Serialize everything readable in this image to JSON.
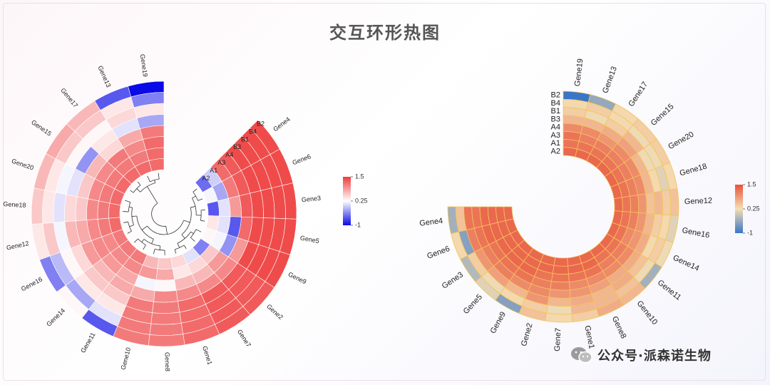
{
  "page": {
    "title": "交互环形热图"
  },
  "watermark": {
    "text": "公众号·派森诺生物"
  },
  "colors": {
    "left_scale": [
      "#0a0ae6",
      "#ffffff",
      "#ee3b3b"
    ],
    "right_scale": [
      "#3a76c8",
      "#f5deb3",
      "#e8523a"
    ],
    "right_cell_border": "#f3c55a"
  },
  "chart_data": [
    {
      "type": "heatmap",
      "layout": "circular",
      "title": "",
      "tracks": [
        "B2",
        "B4",
        "B1",
        "B3",
        "A4",
        "A3",
        "A1",
        "A2"
      ],
      "genes": [
        "Gene4",
        "Gene6",
        "Gene3",
        "Gene5",
        "Gene9",
        "Gene2",
        "Gene7",
        "Gene1",
        "Gene8",
        "Gene10",
        "Gene11",
        "Gene14",
        "Gene16",
        "Gene12",
        "Gene18",
        "Gene20",
        "Gene15",
        "Gene17",
        "Gene13",
        "Gene19"
      ],
      "values": [
        [
          1.4,
          1.4,
          1.4,
          1.4,
          1.3,
          1.2,
          0.0,
          -0.5
        ],
        [
          1.4,
          1.4,
          1.4,
          1.4,
          1.3,
          1.1,
          -0.2,
          0.2
        ],
        [
          1.4,
          1.4,
          1.4,
          1.4,
          1.3,
          0.9,
          0.1,
          -0.6
        ],
        [
          1.4,
          1.4,
          1.4,
          1.4,
          1.2,
          -0.6,
          0.1,
          0.4
        ],
        [
          1.4,
          1.4,
          1.4,
          1.4,
          0.9,
          -0.3,
          0.2,
          0.3
        ],
        [
          1.3,
          1.3,
          1.3,
          1.3,
          1.0,
          0.9,
          0.6,
          -0.4
        ],
        [
          1.3,
          1.3,
          1.3,
          1.3,
          1.0,
          0.7,
          0.5,
          0.1
        ],
        [
          1.2,
          1.2,
          1.2,
          1.2,
          1.0,
          0.7,
          0.4,
          0.5
        ],
        [
          1.1,
          1.1,
          1.1,
          1.1,
          1.0,
          0.3,
          0.8,
          0.6
        ],
        [
          1.1,
          1.1,
          1.1,
          1.1,
          0.8,
          0.2,
          0.9,
          0.7
        ],
        [
          -0.6,
          0.1,
          0.4,
          0.6,
          0.8,
          0.8,
          1.0,
          1.1
        ],
        [
          0.3,
          -0.2,
          0.4,
          0.6,
          0.7,
          0.9,
          1.0,
          1.1
        ],
        [
          -0.4,
          -0.1,
          0.3,
          0.5,
          0.9,
          1.0,
          1.0,
          1.1
        ],
        [
          0.4,
          0.6,
          0.2,
          0.7,
          0.8,
          1.0,
          1.1,
          1.2
        ],
        [
          0.6,
          0.4,
          0.1,
          0.5,
          0.6,
          1.0,
          1.1,
          1.2
        ],
        [
          0.7,
          0.4,
          0.2,
          0.1,
          0.6,
          1.0,
          1.1,
          1.2
        ],
        [
          0.8,
          0.6,
          0.3,
          -0.3,
          0.7,
          1.0,
          1.1,
          1.2
        ],
        [
          0.7,
          0.6,
          0.3,
          0.4,
          0.5,
          1.1,
          1.1,
          1.2
        ],
        [
          -0.6,
          0.4,
          0.5,
          0.1,
          0.8,
          1.0,
          1.1,
          1.2
        ],
        [
          -1.0,
          -0.4,
          0.4,
          -0.2,
          1.1,
          1.2,
          1.2,
          1.2
        ]
      ],
      "legend": {
        "ticks": [
          "1.5",
          "0.25",
          "-1"
        ],
        "range": [
          -1,
          1.5
        ]
      }
    },
    {
      "type": "heatmap",
      "layout": "circular",
      "title": "",
      "tracks": [
        "B2",
        "B4",
        "B1",
        "B3",
        "A4",
        "A3",
        "A1",
        "A2"
      ],
      "genes": [
        "Gene19",
        "Gene13",
        "Gene17",
        "Gene15",
        "Gene20",
        "Gene18",
        "Gene12",
        "Gene16",
        "Gene14",
        "Gene11",
        "Gene10",
        "Gene8",
        "Gene1",
        "Gene7",
        "Gene2",
        "Gene9",
        "Gene5",
        "Gene3",
        "Gene6",
        "Gene4"
      ],
      "values": [
        [
          -1.0,
          0.3,
          0.4,
          0.6,
          1.0,
          1.2,
          1.2,
          1.3
        ],
        [
          -0.4,
          0.4,
          0.2,
          0.6,
          1.0,
          1.1,
          1.2,
          1.3
        ],
        [
          0.3,
          0.3,
          0.4,
          0.7,
          0.9,
          1.1,
          1.2,
          1.3
        ],
        [
          0.4,
          0.2,
          0.6,
          0.8,
          1.0,
          1.1,
          1.2,
          1.3
        ],
        [
          0.4,
          0.2,
          0.2,
          0.6,
          1.0,
          1.1,
          1.2,
          1.3
        ],
        [
          0.3,
          0.1,
          0.3,
          0.6,
          1.0,
          1.1,
          1.2,
          1.3
        ],
        [
          0.5,
          0.4,
          0.6,
          0.5,
          0.9,
          1.1,
          1.2,
          1.3
        ],
        [
          0.1,
          0.3,
          0.4,
          0.6,
          0.9,
          1.1,
          1.2,
          1.3
        ],
        [
          0.2,
          0.4,
          0.3,
          0.7,
          0.9,
          1.0,
          1.2,
          1.3
        ],
        [
          -0.3,
          0.2,
          0.5,
          0.7,
          1.0,
          1.1,
          1.2,
          1.3
        ],
        [
          0.6,
          0.5,
          0.7,
          0.7,
          1.0,
          1.1,
          1.2,
          1.3
        ],
        [
          0.7,
          0.6,
          0.6,
          0.8,
          1.0,
          1.2,
          1.3,
          1.3
        ],
        [
          0.4,
          0.6,
          0.7,
          0.9,
          1.0,
          1.2,
          1.3,
          1.3
        ],
        [
          0.3,
          0.2,
          0.6,
          0.9,
          1.1,
          1.2,
          1.3,
          1.3
        ],
        [
          0.5,
          0.4,
          0.9,
          1.0,
          1.1,
          1.2,
          1.3,
          1.3
        ],
        [
          -0.5,
          0.3,
          0.6,
          1.0,
          1.2,
          1.3,
          1.3,
          1.3
        ],
        [
          0.1,
          0.2,
          0.8,
          1.1,
          1.2,
          1.3,
          1.3,
          1.3
        ],
        [
          -0.2,
          0.4,
          0.9,
          1.1,
          1.2,
          1.3,
          1.3,
          1.3
        ],
        [
          0.3,
          -0.5,
          1.1,
          1.2,
          1.3,
          1.3,
          1.3,
          1.3
        ],
        [
          -0.3,
          0.5,
          1.2,
          1.2,
          1.3,
          1.3,
          1.3,
          1.3
        ]
      ],
      "legend": {
        "ticks": [
          "1.5",
          "0.25",
          "-1"
        ],
        "range": [
          -1,
          1.5
        ]
      }
    }
  ]
}
